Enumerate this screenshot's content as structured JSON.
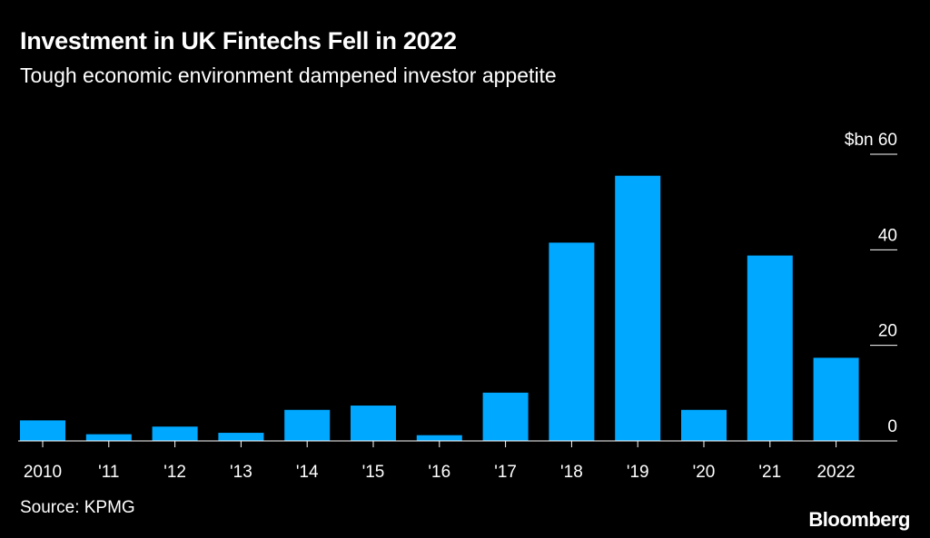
{
  "colors": {
    "background": "#000000",
    "bar": "#00a8ff",
    "text": "#ffffff"
  },
  "chart_data": {
    "type": "bar",
    "title": "Investment in UK Fintechs Fell in 2022",
    "subtitle": "Tough economic environment dampened investor appetite",
    "ylabel": "$bn",
    "ylim": [
      0,
      60
    ],
    "yticks": [
      0,
      20,
      40,
      60
    ],
    "y_unit_tick": "$bn 60",
    "categories": [
      "2010",
      "'11",
      "'12",
      "'13",
      "'14",
      "'15",
      "'16",
      "'17",
      "'18",
      "'19",
      "'20",
      "'21",
      "2022"
    ],
    "values": [
      4.3,
      1.4,
      3.0,
      1.7,
      6.5,
      7.4,
      1.2,
      10.1,
      41.5,
      55.5,
      6.5,
      38.8,
      17.4
    ],
    "source": "Source: KPMG"
  },
  "branding": {
    "logo": "Bloomberg"
  }
}
